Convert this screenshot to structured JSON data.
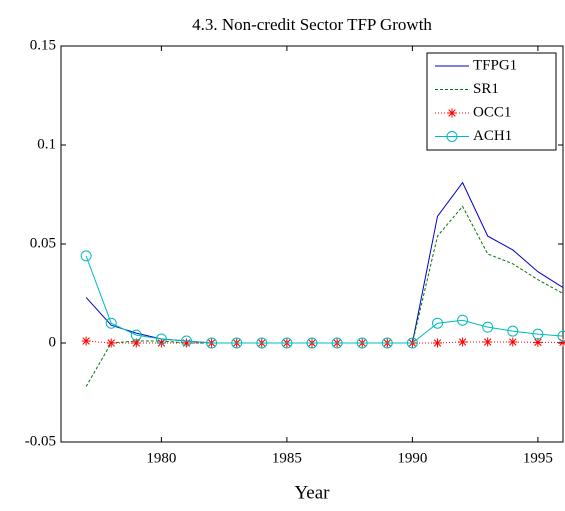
{
  "chart_data": {
    "type": "line",
    "title": "4.3. Non-credit Sector TFP Growth",
    "x_label": "Year",
    "x": [
      1977,
      1978,
      1979,
      1980,
      1981,
      1982,
      1983,
      1984,
      1985,
      1986,
      1987,
      1988,
      1989,
      1990,
      1991,
      1992,
      1993,
      1994,
      1995,
      1996
    ],
    "series": [
      {
        "name": "TFPG1",
        "color": "#0000cc",
        "linestyle": "solid",
        "marker": "none",
        "values": [
          0.023,
          0.009,
          0.005,
          0.002,
          0.001,
          0,
          0,
          0,
          0,
          0,
          0,
          0,
          0,
          0,
          0.064,
          0.081,
          0.054,
          0.047,
          0.036,
          0.028
        ]
      },
      {
        "name": "SR1",
        "color": "#007700",
        "linestyle": "dashed",
        "marker": "none",
        "values": [
          -0.022,
          0,
          0.001,
          0.001,
          0,
          0,
          0,
          0,
          0,
          0,
          0,
          0,
          0,
          0,
          0.054,
          0.069,
          0.045,
          0.04,
          0.032,
          0.025
        ]
      },
      {
        "name": "OCC1",
        "color": "#ff0000",
        "linestyle": "dotted",
        "marker": "star",
        "values": [
          0.001,
          0,
          0,
          0,
          0,
          0,
          0,
          0,
          0,
          0,
          0,
          0,
          0,
          0,
          0,
          0.0005,
          0.0005,
          0.0005,
          0.0003,
          0.0003
        ]
      },
      {
        "name": "ACH1",
        "color": "#00bbbb",
        "linestyle": "solid",
        "marker": "circle",
        "values": [
          0.044,
          0.01,
          0.004,
          0.002,
          0.001,
          0,
          0,
          0,
          0,
          0,
          0,
          0,
          0,
          0,
          0.01,
          0.0115,
          0.008,
          0.006,
          0.0045,
          0.0035
        ]
      }
    ],
    "xlim": [
      1976,
      1996
    ],
    "xticks": [
      1980,
      1985,
      1990,
      1995
    ],
    "ylim": [
      -0.05,
      0.15
    ],
    "yticks": [
      -0.05,
      0,
      0.05,
      0.1,
      0.15
    ],
    "grid": false,
    "legend": "top-right"
  }
}
